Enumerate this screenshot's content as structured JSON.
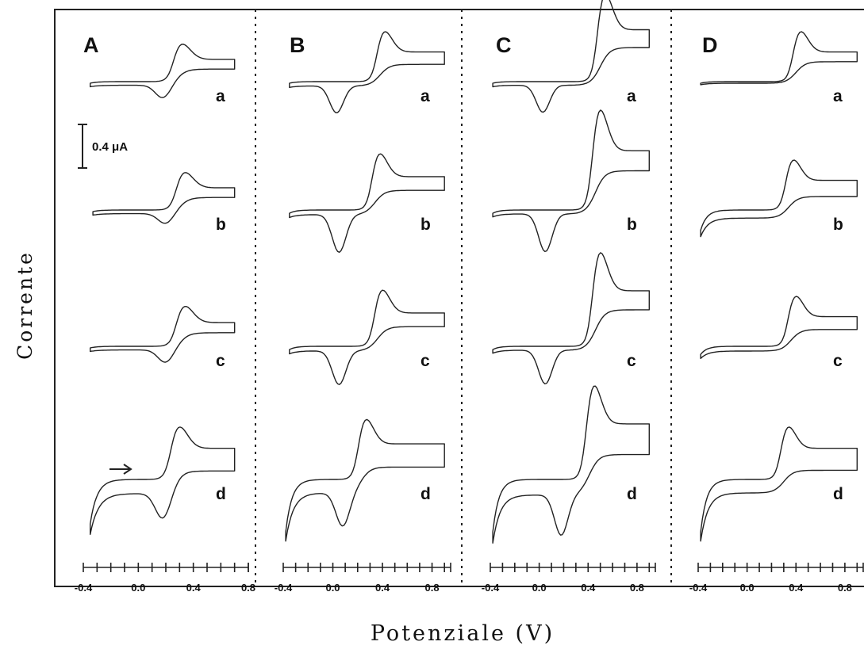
{
  "chart_data": {
    "type": "line",
    "ylabel": "Corrente",
    "xlabel": "Potenziale (V)",
    "scale_bar": {
      "label": "0.4 μA",
      "value": 0.4,
      "unit": "μA"
    },
    "annotation": "arrow pointing right (scan direction) in panel A, curve d",
    "panels": [
      {
        "label": "A",
        "x_ticks": [
          "-0.4",
          "0.0",
          "0.4",
          "0.8"
        ],
        "xlim": [
          -0.4,
          0.8
        ],
        "curves": [
          {
            "label": "a",
            "x_start": -0.35,
            "x_end": 0.7,
            "ox_peak_x": 0.3,
            "ox_peak_height": 0.3,
            "red_peak_x": 0.18,
            "red_peak_depth": 0.1,
            "tail": 0.02,
            "sep": 0.1
          },
          {
            "label": "b",
            "x_start": -0.33,
            "x_end": 0.7,
            "ox_peak_x": 0.32,
            "ox_peak_height": 0.3,
            "red_peak_x": 0.2,
            "red_peak_depth": 0.08,
            "tail": 0.02,
            "sep": 0.1
          },
          {
            "label": "c",
            "x_start": -0.35,
            "x_end": 0.7,
            "ox_peak_x": 0.32,
            "ox_peak_height": 0.32,
            "red_peak_x": 0.2,
            "red_peak_depth": 0.1,
            "tail": 0.02,
            "sep": 0.1
          },
          {
            "label": "d",
            "x_start": -0.35,
            "x_end": 0.7,
            "ox_peak_x": 0.28,
            "ox_peak_height": 0.42,
            "red_peak_x": 0.18,
            "red_peak_depth": 0.2,
            "tail": 0.55,
            "sep": 0.2
          }
        ]
      },
      {
        "label": "B",
        "x_ticks": [
          "-0.4",
          "0.0",
          "0.4",
          "0.8"
        ],
        "xlim": [
          -0.4,
          0.95
        ],
        "curves": [
          {
            "label": "a",
            "x_start": -0.35,
            "x_end": 0.9,
            "ox_peak_x": 0.4,
            "ox_peak_height": 0.4,
            "red_peak_x": 0.03,
            "red_peak_depth": 0.2,
            "tail": 0.02,
            "sep": 0.12
          },
          {
            "label": "b",
            "x_start": -0.35,
            "x_end": 0.9,
            "ox_peak_x": 0.36,
            "ox_peak_height": 0.45,
            "red_peak_x": 0.05,
            "red_peak_depth": 0.28,
            "tail": 0.04,
            "sep": 0.12
          },
          {
            "label": "c",
            "x_start": -0.35,
            "x_end": 0.9,
            "ox_peak_x": 0.38,
            "ox_peak_height": 0.45,
            "red_peak_x": 0.05,
            "red_peak_depth": 0.25,
            "tail": 0.04,
            "sep": 0.12
          },
          {
            "label": "d",
            "x_start": -0.38,
            "x_end": 0.9,
            "ox_peak_x": 0.25,
            "ox_peak_height": 0.48,
            "red_peak_x": 0.08,
            "red_peak_depth": 0.25,
            "tail": 0.65,
            "sep": 0.14
          }
        ]
      },
      {
        "label": "C",
        "x_ticks": [
          "-0.4",
          "0.0",
          "0.4",
          "0.8"
        ],
        "xlim": [
          -0.4,
          0.95
        ],
        "curves": [
          {
            "label": "a",
            "x_start": -0.38,
            "x_end": 0.9,
            "ox_peak_x": 0.52,
            "ox_peak_height": 0.7,
            "red_peak_x": 0.03,
            "red_peak_depth": 0.2,
            "tail": 0.02,
            "sep": 0.1
          },
          {
            "label": "b",
            "x_start": -0.38,
            "x_end": 0.9,
            "ox_peak_x": 0.48,
            "ox_peak_height": 0.8,
            "red_peak_x": 0.05,
            "red_peak_depth": 0.28,
            "tail": 0.04,
            "sep": 0.1
          },
          {
            "label": "c",
            "x_start": -0.38,
            "x_end": 0.9,
            "ox_peak_x": 0.48,
            "ox_peak_height": 0.75,
            "red_peak_x": 0.05,
            "red_peak_depth": 0.25,
            "tail": 0.04,
            "sep": 0.1
          },
          {
            "label": "d",
            "x_start": -0.38,
            "x_end": 0.9,
            "ox_peak_x": 0.43,
            "ox_peak_height": 0.75,
            "red_peak_x": 0.18,
            "red_peak_depth": 0.3,
            "tail": 0.65,
            "sep": 0.2
          }
        ]
      },
      {
        "label": "D",
        "x_ticks": [
          "-0.4",
          "0.0",
          "0.4",
          "0.8"
        ],
        "xlim": [
          -0.4,
          0.95
        ],
        "curves": [
          {
            "label": "a",
            "x_start": -0.38,
            "x_end": 0.9,
            "ox_peak_x": 0.42,
            "ox_peak_height": 0.4,
            "red_peak_x": null,
            "red_peak_depth": 0,
            "tail": 0.02,
            "sep": 0.04
          },
          {
            "label": "b",
            "x_start": -0.38,
            "x_end": 0.9,
            "ox_peak_x": 0.36,
            "ox_peak_height": 0.4,
            "red_peak_x": null,
            "red_peak_depth": 0,
            "tail": 0.25,
            "sep": 0.14
          },
          {
            "label": "c",
            "x_start": -0.38,
            "x_end": 0.9,
            "ox_peak_x": 0.38,
            "ox_peak_height": 0.4,
            "red_peak_x": null,
            "red_peak_depth": 0,
            "tail": 0.1,
            "sep": 0.1
          },
          {
            "label": "d",
            "x_start": -0.38,
            "x_end": 0.9,
            "ox_peak_x": 0.32,
            "ox_peak_height": 0.42,
            "red_peak_x": null,
            "red_peak_depth": 0,
            "tail": 0.65,
            "sep": 0.14
          }
        ]
      }
    ]
  }
}
